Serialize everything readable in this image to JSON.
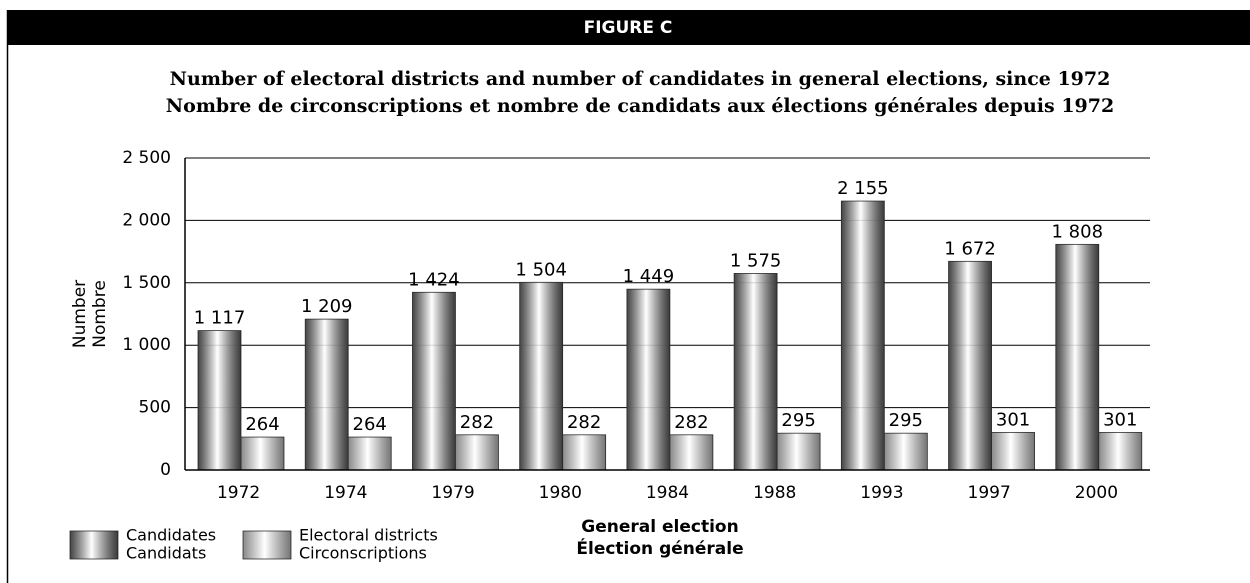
{
  "header": "FIGURE C",
  "chart_data": {
    "type": "bar",
    "title": "Number of electoral districts and number of candidates in general elections, since 1972",
    "subtitle": "Nombre de circonscriptions et nombre de candidats aux élections générales depuis 1972",
    "ylabel": [
      "Number",
      "Nombre"
    ],
    "xlabel": [
      "General election",
      "Élection générale"
    ],
    "categories": [
      "1972",
      "1974",
      "1979",
      "1980",
      "1984",
      "1988",
      "1993",
      "1997",
      "2000"
    ],
    "series": [
      {
        "name": [
          "Candidates",
          "Candidats"
        ],
        "color": "#6a6a6a",
        "values": [
          1117,
          1209,
          1424,
          1504,
          1449,
          1575,
          2155,
          1672,
          1808
        ],
        "value_labels": [
          "1 117",
          "1 209",
          "1 424",
          "1 504",
          "1 449",
          "1 575",
          "2 155",
          "1 672",
          "1 808"
        ]
      },
      {
        "name": [
          "Electoral districts",
          "Circonscriptions"
        ],
        "color": "#d4d4d4",
        "values": [
          264,
          264,
          282,
          282,
          282,
          295,
          295,
          301,
          301
        ],
        "value_labels": [
          "264",
          "264",
          "282",
          "282",
          "282",
          "295",
          "295",
          "301",
          "301"
        ]
      }
    ],
    "ylim": [
      0,
      2500
    ],
    "yticks": [
      0,
      500,
      {
        "value": 1000,
        "label": "1 000"
      },
      {
        "value": 1500,
        "label": "1 500"
      },
      {
        "value": 2000,
        "label": "2 000"
      },
      {
        "value": 2500,
        "label": "2 500"
      }
    ],
    "grid": true,
    "legend": "bottom-left"
  }
}
